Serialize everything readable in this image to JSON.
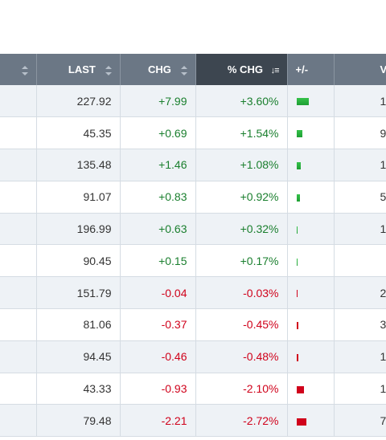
{
  "table": {
    "headers": [
      "",
      "LAST",
      "CHG",
      "% CHG",
      "+/-",
      "V"
    ],
    "rows": [
      {
        "last": "227.92",
        "chg": "+7.99",
        "pct": "+3.60%",
        "bar": 3.6,
        "dir": "up",
        "vol": "1"
      },
      {
        "last": "45.35",
        "chg": "+0.69",
        "pct": "+1.54%",
        "bar": 1.54,
        "dir": "up",
        "vol": "9"
      },
      {
        "last": "135.48",
        "chg": "+1.46",
        "pct": "+1.08%",
        "bar": 1.08,
        "dir": "up",
        "vol": "1"
      },
      {
        "last": "91.07",
        "chg": "+0.83",
        "pct": "+0.92%",
        "bar": 0.92,
        "dir": "up",
        "vol": "5"
      },
      {
        "last": "196.99",
        "chg": "+0.63",
        "pct": "+0.32%",
        "bar": 0.32,
        "dir": "up",
        "vol": "1"
      },
      {
        "last": "90.45",
        "chg": "+0.15",
        "pct": "+0.17%",
        "bar": 0.17,
        "dir": "up",
        "vol": ""
      },
      {
        "last": "151.79",
        "chg": "-0.04",
        "pct": "-0.03%",
        "bar": 0.03,
        "dir": "down",
        "vol": "2"
      },
      {
        "last": "81.06",
        "chg": "-0.37",
        "pct": "-0.45%",
        "bar": 0.45,
        "dir": "down",
        "vol": "3"
      },
      {
        "last": "94.45",
        "chg": "-0.46",
        "pct": "-0.48%",
        "bar": 0.48,
        "dir": "down",
        "vol": "1"
      },
      {
        "last": "43.33",
        "chg": "-0.93",
        "pct": "-2.10%",
        "bar": 2.1,
        "dir": "down",
        "vol": "1"
      },
      {
        "last": "79.48",
        "chg": "-2.21",
        "pct": "-2.72%",
        "bar": 2.72,
        "dir": "down",
        "vol": "7"
      }
    ]
  },
  "colors": {
    "up": "#1a7f2e",
    "down": "#d0021b",
    "header": "#6b7785",
    "header_active": "#3d4650"
  }
}
